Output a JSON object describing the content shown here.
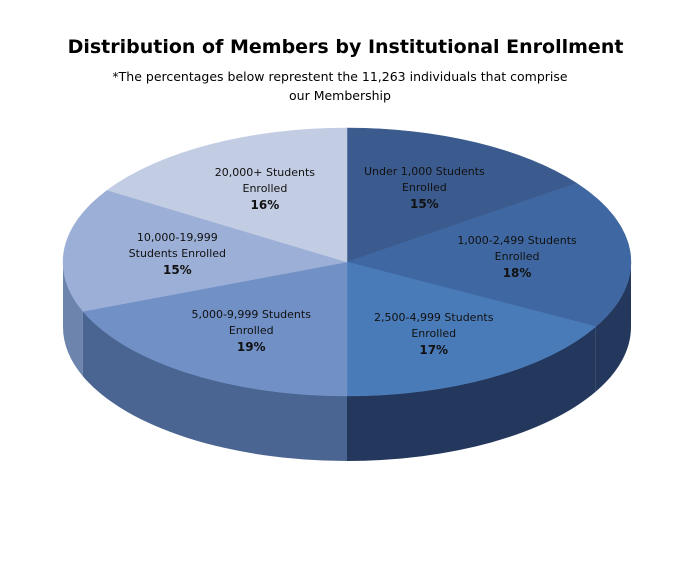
{
  "chart_data": {
    "type": "pie",
    "title": "Distribution of Members by Institutional Enrollment",
    "subtitle": "*The percentages below represtent the 11,263 individuals that comprise our Membership",
    "categories": [
      "Under 1,000 Students Enrolled",
      "1,000-2,499 Students Enrolled",
      "2,500-4,999 Students Enrolled",
      "5,000-9,999 Students Enrolled",
      "10,000-19,999 Students Enrolled",
      "20,000+ Students Enrolled"
    ],
    "values": [
      15,
      18,
      17,
      19,
      15,
      16
    ],
    "value_labels": [
      "15%",
      "18%",
      "17%",
      "19%",
      "15%",
      "16%"
    ],
    "colors": [
      "#3b5b8e",
      "#3f68a2",
      "#4a7bb9",
      "#7090c6",
      "#9cafd6",
      "#c2cce3"
    ],
    "side_colors": [
      "#1f3355",
      "#23385c",
      "#23385c",
      "#4a6591",
      "#6d84ad",
      "#8c9cbf"
    ]
  }
}
